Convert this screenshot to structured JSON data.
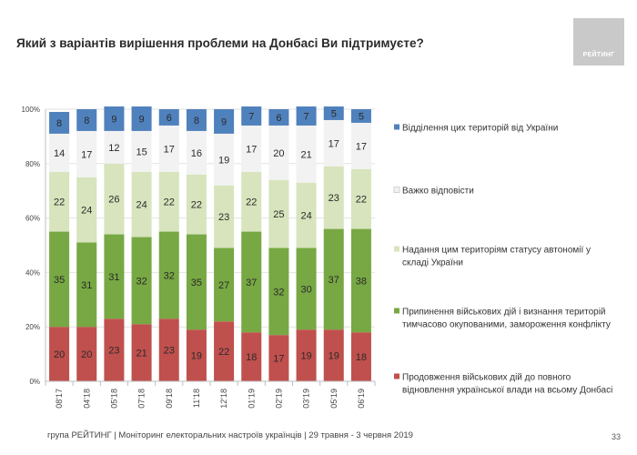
{
  "header": {
    "title": "Який з варіантів вирішення проблеми на Донбасі Ви підтримуєте?",
    "logo_text": "РЕЙТИНГ"
  },
  "footer": {
    "text": "група РЕЙТИНГ | Моніторинг електоральних настроїв українців  | 29 травня - 3 червня 2019",
    "page": "33"
  },
  "chart_data": {
    "type": "bar",
    "stacked": true,
    "orientation": "vertical",
    "categories": [
      "08'17",
      "04'18",
      "05'18",
      "07'18",
      "09'18",
      "11'18",
      "12'18",
      "01'19",
      "02'19",
      "03'19",
      "05'19",
      "06'19"
    ],
    "yticks": [
      "0%",
      "20%",
      "40%",
      "60%",
      "80%",
      "100%"
    ],
    "ylim": [
      0,
      100
    ],
    "legend_position": "right",
    "series": [
      {
        "name": "Продовження військових дій до повного відновлення української влади на всьому Донбасі",
        "color": "#c0504d",
        "values": [
          20,
          20,
          23,
          21,
          23,
          19,
          22,
          18,
          17,
          19,
          19,
          18
        ]
      },
      {
        "name": "Припинення військових дій і визнання територій тимчасово окупованими, замороження конфлікту",
        "color": "#77a843",
        "values": [
          35,
          31,
          31,
          32,
          32,
          35,
          27,
          37,
          32,
          30,
          37,
          38
        ]
      },
      {
        "name": "Надання цим територіям статусу автономії у складі України",
        "color": "#d7e4bd",
        "values": [
          22,
          24,
          26,
          24,
          22,
          22,
          23,
          22,
          25,
          24,
          23,
          22
        ]
      },
      {
        "name": "Важко відповісти",
        "color": "#f2f2f2",
        "values": [
          14,
          17,
          12,
          15,
          17,
          16,
          19,
          17,
          20,
          21,
          17,
          17
        ]
      },
      {
        "name": "Відділення цих територій від України",
        "color": "#4f81bd",
        "values": [
          8,
          8,
          9,
          9,
          6,
          8,
          9,
          7,
          6,
          7,
          5,
          5
        ]
      }
    ]
  }
}
